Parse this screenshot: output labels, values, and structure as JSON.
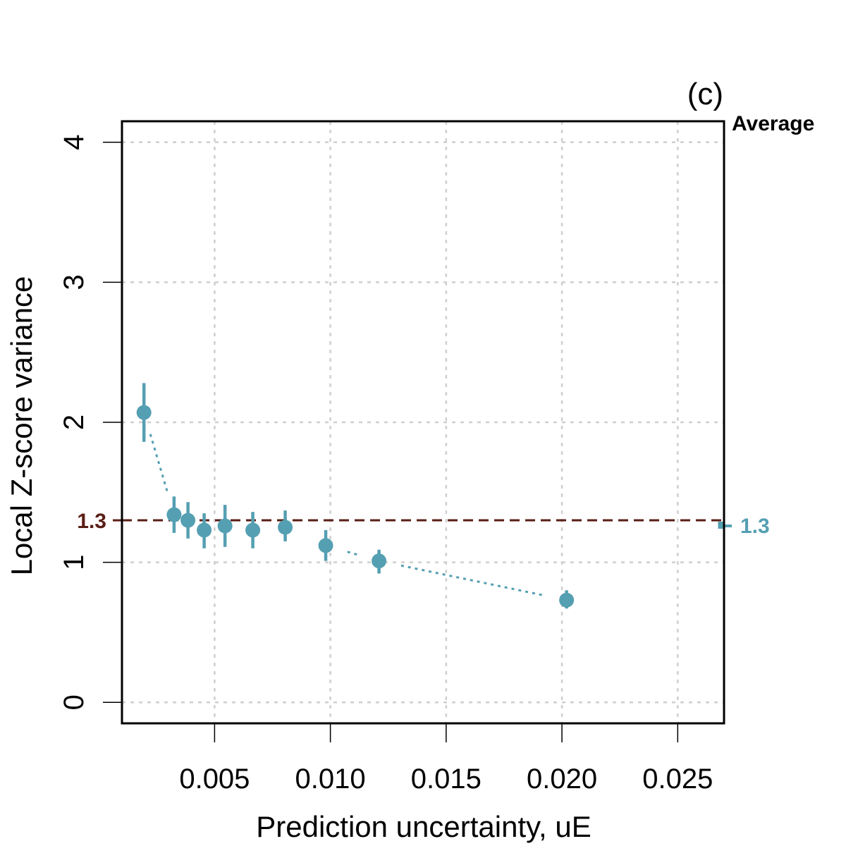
{
  "chart_data": {
    "type": "scatter",
    "panel_label": "(c)",
    "title": "",
    "xlabel": "Prediction uncertainty, uE",
    "ylabel": "Local Z-score variance",
    "xlim": [
      0.001,
      0.027
    ],
    "ylim": [
      -0.15,
      4.15
    ],
    "x_ticks": [
      0.005,
      0.01,
      0.015,
      0.02,
      0.025
    ],
    "x_tick_labels": [
      "0.005",
      "0.010",
      "0.015",
      "0.020",
      "0.025"
    ],
    "y_ticks": [
      0,
      1,
      2,
      3,
      4
    ],
    "y_tick_labels": [
      "0",
      "1",
      "2",
      "3",
      "4"
    ],
    "grid": true,
    "series": [
      {
        "name": "Local Z-score variance",
        "color": "#559FB2",
        "x": [
          0.00195,
          0.00325,
          0.00385,
          0.00455,
          0.00545,
          0.00665,
          0.00805,
          0.0098,
          0.0121,
          0.0202
        ],
        "y": [
          2.07,
          1.34,
          1.3,
          1.23,
          1.26,
          1.23,
          1.25,
          1.12,
          1.01,
          0.73
        ],
        "y_low": [
          1.86,
          1.21,
          1.17,
          1.1,
          1.11,
          1.1,
          1.15,
          1.01,
          0.92,
          0.67
        ],
        "y_high": [
          2.28,
          1.47,
          1.43,
          1.35,
          1.41,
          1.36,
          1.37,
          1.23,
          1.09,
          0.8
        ]
      }
    ],
    "reference_line": {
      "value": 1.3,
      "label": "1.3",
      "color": "#5A1E16",
      "style": "dashed"
    },
    "average": {
      "header": "Average",
      "value": 1.26,
      "label": "1.3",
      "y_low": 1.24,
      "y_high": 1.29,
      "color": "#559FB2"
    }
  }
}
